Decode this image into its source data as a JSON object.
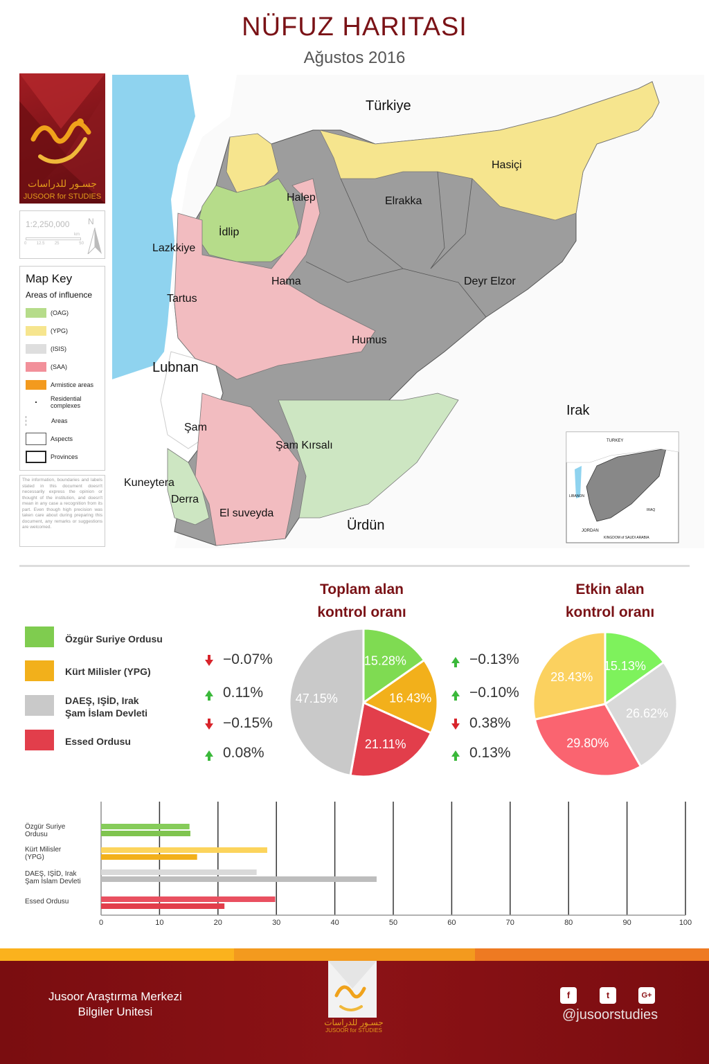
{
  "header": {
    "title": "NÜFUZ HARITASI",
    "subtitle": "Ağustos   2016"
  },
  "logo": {
    "arabic": "جسـور للدراسات",
    "english": "JUSOOR for STUDIES"
  },
  "scale": {
    "ratio": "1:2,250,000",
    "north": "N",
    "ticks": [
      "0",
      "12.5",
      "25",
      "",
      "50"
    ],
    "unit": "km"
  },
  "map_key": {
    "title": "Map Key",
    "subtitle": "Areas of influence",
    "items": [
      {
        "label": "(OAG)",
        "color": "#b6dc8a"
      },
      {
        "label": "(YPG)",
        "color": "#f6e58e"
      },
      {
        "label": "(ISIS)",
        "color": "#dedede"
      },
      {
        "label": "(SAA)",
        "color": "#f2909a"
      },
      {
        "label": "Armistice areas",
        "color": "#f39a1e"
      },
      {
        "label": "Residential complexes"
      },
      {
        "label": "Areas"
      },
      {
        "label": "Aspects"
      },
      {
        "label": "Provinces"
      }
    ]
  },
  "disclaimer": "The information, boundaries and labels stated in this document doesn't necessarily express the opinion or thought of the institution, and doesn't mean in any case a recognition from its part. Even though high precision was taken care about during preparing this document, any remarks or suggestions are welcomed.",
  "map": {
    "labels": {
      "turkey": "Türkiye",
      "hasici": "Hasiçi",
      "halep": "Halep",
      "elrakka": "Elrakka",
      "idlip": "İdlip",
      "lazkkiye": "Lazkkiye",
      "hama": "Hama",
      "deyr": "Deyr Elzor",
      "tartus": "Tartus",
      "humus": "Humus",
      "lubnan": "Lubnan",
      "irak": "Irak",
      "sam": "Şam",
      "samk": "Şam Kırsalı",
      "kuneytera": "Kuneytera",
      "derra": "Derra",
      "suveyda": "El suveyda",
      "urdun": "Ürdün"
    },
    "inset": {
      "turkey": "TURKEY",
      "lebanon": "LIBANON",
      "iraq": "IRAQ",
      "jordan": "JORDAN",
      "saudi": "KINGDOM of SAUDI ARABIA"
    }
  },
  "legend": [
    {
      "label": "Özgür Suriye Ordusu",
      "color": "#7fcc4f"
    },
    {
      "label": "Kürt  Milisler (YPG)",
      "color": "#f2b01b"
    },
    {
      "label": "DAEŞ, IŞİD, Irak\nŞam İslam Devleti",
      "color": "#c9c9c9"
    },
    {
      "label": "Essed Ordusu",
      "color": "#e23e4b"
    }
  ],
  "pie_total": {
    "title_line1": "Toplam alan",
    "title_line2": "kontrol oranı",
    "changes": [
      {
        "dir": "down",
        "value": "−0.07%"
      },
      {
        "dir": "up",
        "value": "0.11%"
      },
      {
        "dir": "down",
        "value": "−0.15%"
      },
      {
        "dir": "up",
        "value": "0.08%"
      }
    ]
  },
  "pie_effective": {
    "title_line1": "Etkin alan",
    "title_line2": "kontrol oranı",
    "changes": [
      {
        "dir": "up",
        "value": "−0.13%"
      },
      {
        "dir": "up",
        "value": "−0.10%"
      },
      {
        "dir": "down",
        "value": "0.38%"
      },
      {
        "dir": "up",
        "value": "0.13%"
      }
    ]
  },
  "chart_data": [
    {
      "type": "pie",
      "title": "Toplam alan kontrol oranı",
      "categories": [
        "Özgür Suriye Ordusu",
        "Kürt  Milisler (YPG)",
        "Essed Ordusu",
        "DAEŞ, IŞİD, Irak Şam İslam Devleti"
      ],
      "values": [
        15.28,
        16.43,
        21.11,
        47.15
      ],
      "value_labels": [
        "15.28%",
        "16.43%",
        "21.11%",
        "47.15%"
      ],
      "colors": [
        "#7fdb52",
        "#f2b01b",
        "#e23e4b",
        "#c9c9c9"
      ]
    },
    {
      "type": "pie",
      "title": "Etkin alan kontrol oranı",
      "categories": [
        "Özgür Suriye Ordusu",
        "DAEŞ, IŞİD, Irak Şam İslam Devleti",
        "Essed Ordusu",
        "Kürt  Milisler (YPG)"
      ],
      "values": [
        15.13,
        26.62,
        29.8,
        28.43
      ],
      "value_labels": [
        "15.13%",
        "26.62%",
        "29.80%",
        "28.43%"
      ],
      "colors": [
        "#7ef25c",
        "#d9d9d9",
        "#fa6470",
        "#fbd15f"
      ]
    },
    {
      "type": "bar",
      "orientation": "horizontal",
      "categories": [
        "Özgür Suriye\nOrdusu",
        "Kürt  Milisler\n(YPG)",
        "DAEŞ, IŞİD, Irak\nŞam İslam Devleti",
        "Essed Ordusu"
      ],
      "series": [
        {
          "values": [
            15.13,
            28.43,
            26.62,
            29.8
          ]
        },
        {
          "values": [
            15.28,
            16.43,
            47.15,
            21.11
          ]
        }
      ],
      "colors_series1": [
        "#86cc5a",
        "#fcd45c",
        "#d9d9d9",
        "#e95060"
      ],
      "colors_series2": [
        "#7fc44f",
        "#f2b01b",
        "#bdbdbd",
        "#e23e4b"
      ],
      "xlim": [
        0,
        100
      ],
      "xticks": [
        "0",
        "10",
        "20",
        "30",
        "40",
        "50",
        "60",
        "70",
        "80",
        "90",
        "100"
      ]
    }
  ],
  "footer": {
    "line1": "Jusoor Araştırma Merkezi",
    "line2": "Bilgiler Unitesi",
    "handle": "@jusoorstudies",
    "social": [
      "f",
      "t",
      "G+"
    ]
  }
}
